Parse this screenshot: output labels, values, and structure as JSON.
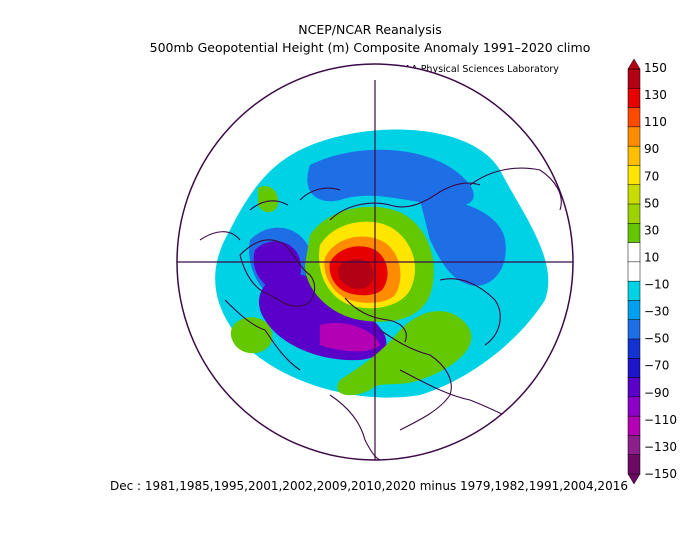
{
  "title_line1": "NCEP/NCAR Reanalysis",
  "title_line2": "500mb Geopotential Height (m) Composite Anomaly 1991–2020 climo",
  "credit": "NOAA Physical Sciences Laboratory",
  "caption": "Dec : 1981,1985,1995,2001,2002,2009,2010,2020 minus 1979,1982,1991,2004,2016",
  "colorbar": {
    "ticks": [
      "150",
      "130",
      "110",
      "90",
      "70",
      "50",
      "30",
      "10",
      "−10",
      "−30",
      "−50",
      "−70",
      "−90",
      "−110",
      "−130",
      "−150"
    ],
    "colors": [
      "#b40014",
      "#e60000",
      "#ff4a00",
      "#ff8c00",
      "#ffbe00",
      "#ffe600",
      "#c8dc00",
      "#9bd200",
      "#64c800",
      "#ffffff",
      "#ffffff",
      "#00d2e6",
      "#00a0f0",
      "#1e6ee6",
      "#1432d2",
      "#1e14c8",
      "#5a00c8",
      "#8c00c8",
      "#b400b4",
      "#8c1e8c",
      "#6e0a64"
    ]
  },
  "map_colors": {
    "land_outline": "#3c0a46",
    "strong_positive": "#b40014",
    "positive": "#e60000",
    "moderate_positive": "#ff8c00",
    "weak_positive": "#ffe600",
    "slight_positive": "#64c800",
    "slight_negative": "#00d2e6",
    "moderate_negative": "#1e6ee6",
    "strong_negative": "#5a00c8",
    "very_strong_negative": "#b400b4"
  }
}
